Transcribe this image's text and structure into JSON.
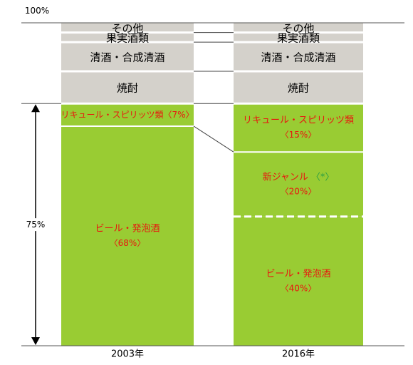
{
  "chart_data": {
    "type": "bar",
    "stacked": true,
    "categories": [
      "2003年",
      "2016年"
    ],
    "top_label": "100%",
    "range_label": "75%",
    "ylim": [
      0,
      100
    ],
    "segments_2003": [
      {
        "name": "ビール・発泡酒",
        "pct_label": "〈68%〉",
        "value": 68
      },
      {
        "name": "リキュール・スピリッツ類〈7%〉",
        "value": 7
      },
      {
        "name": "焼酎",
        "value": 10
      },
      {
        "name": "清酒・合成清酒",
        "value": 9
      },
      {
        "name": "果実酒類",
        "value": 3
      },
      {
        "name": "その他",
        "value": 3
      }
    ],
    "segments_2016": [
      {
        "name": "ビール・発泡酒",
        "pct_label": "〈40%〉",
        "value": 40
      },
      {
        "name": "新ジャンル",
        "marker": "〈*〉",
        "pct_label": "〈20%〉",
        "value": 20
      },
      {
        "name": "リキュール・スピリッツ類",
        "pct_label": "〈15%〉",
        "value": 15
      },
      {
        "name": "焼酎",
        "value": 10
      },
      {
        "name": "清酒・合成清酒",
        "value": 9
      },
      {
        "name": "果実酒類",
        "value": 3
      },
      {
        "name": "その他",
        "value": 3
      }
    ],
    "colors": {
      "green": "#99cc33",
      "gray": "#d4d1cb",
      "red_text": "#e8170f",
      "green_text": "#2ea043",
      "black": "#000000"
    }
  }
}
